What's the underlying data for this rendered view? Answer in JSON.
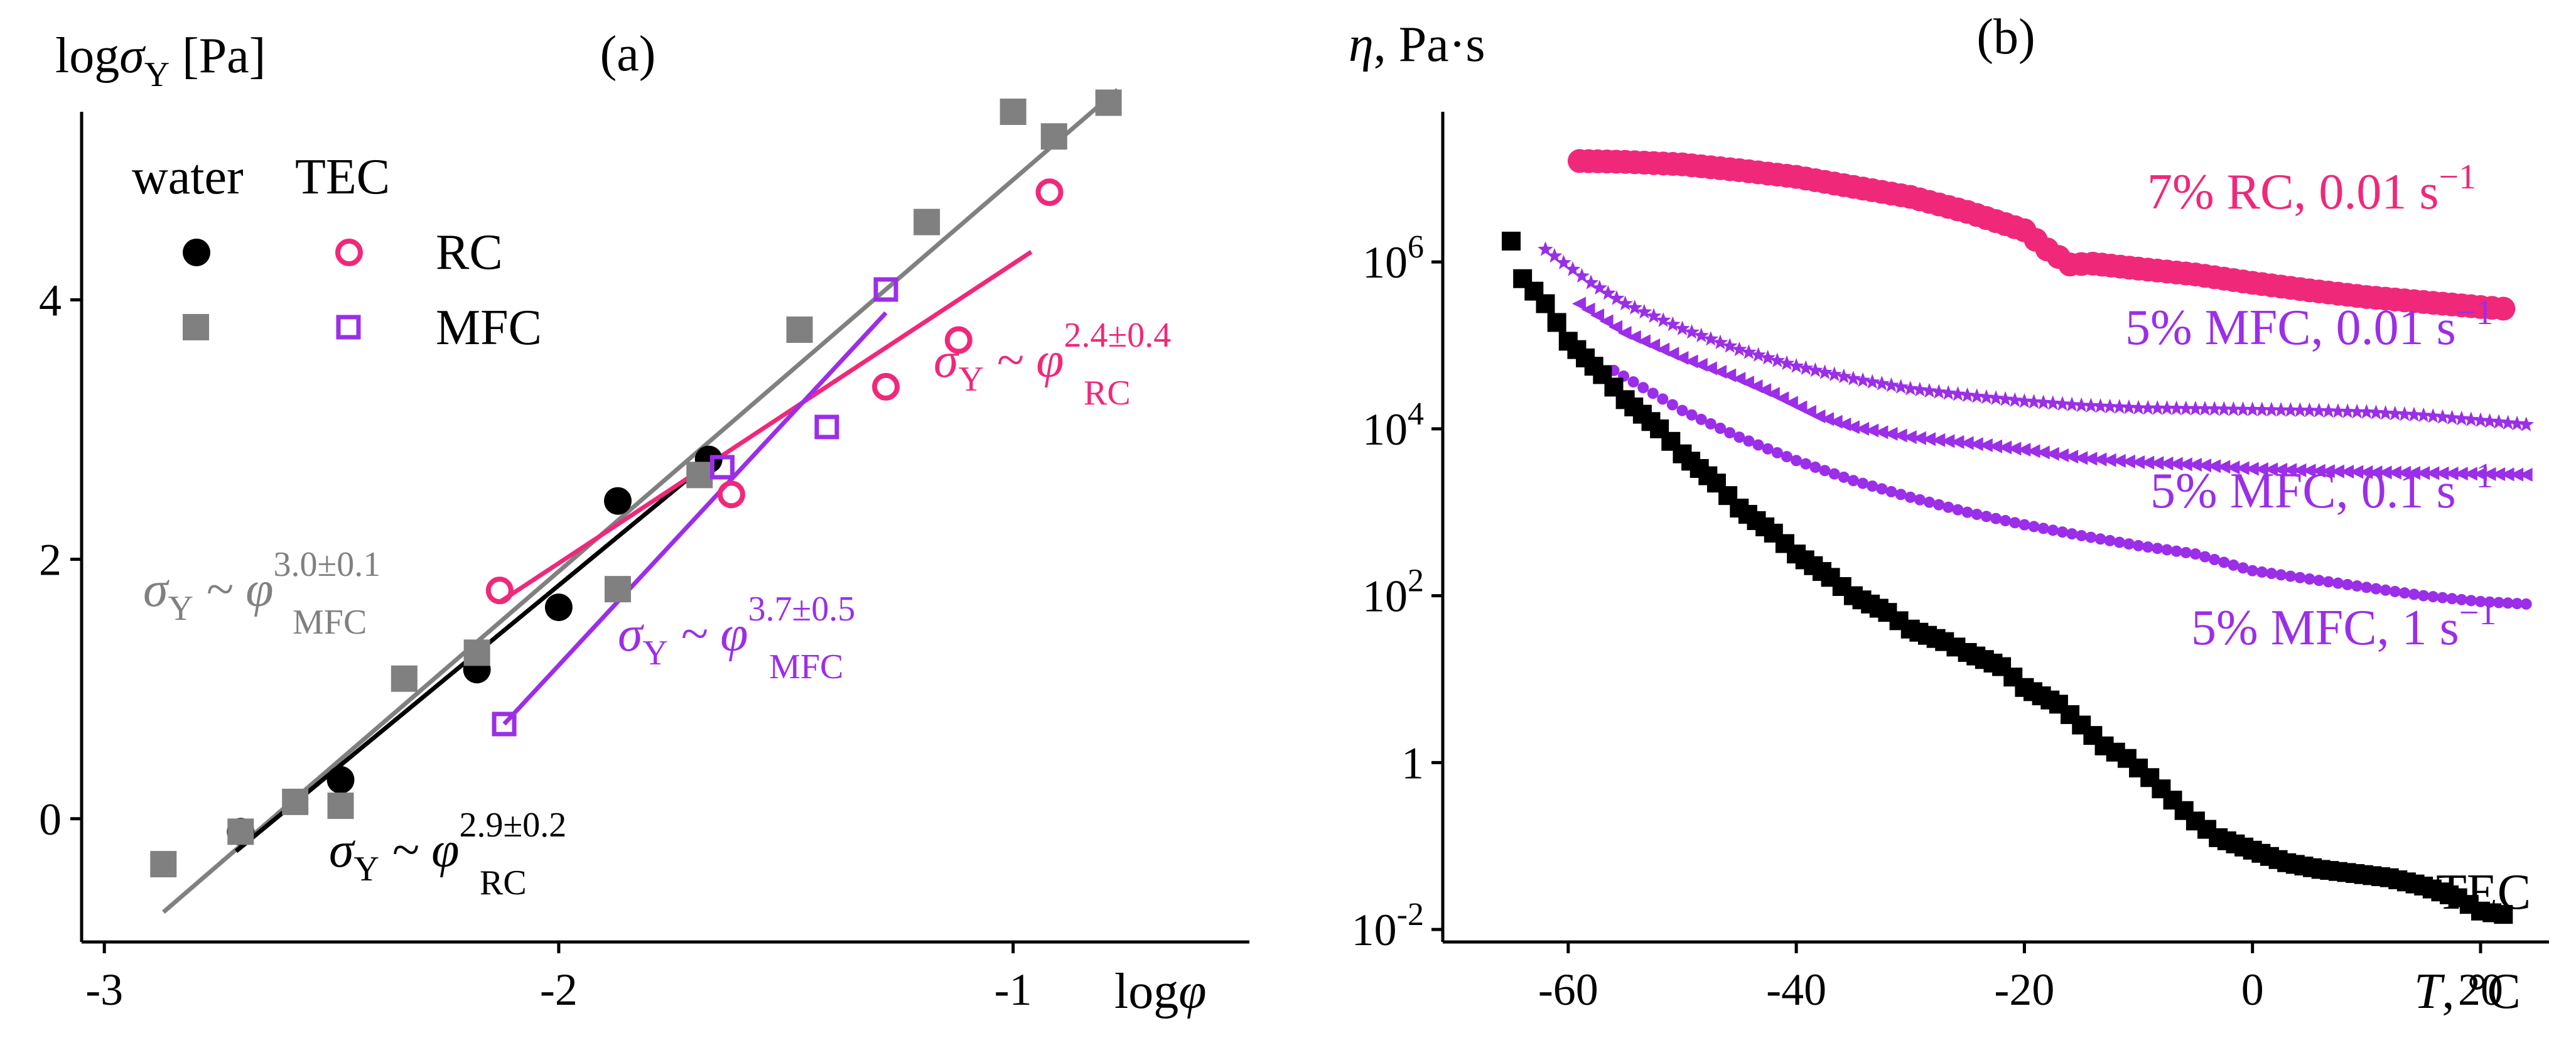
{
  "colors": {
    "black": "#000000",
    "gray": "#808080",
    "pink": "#f0287a",
    "purple": "#9b2ee8"
  },
  "chart_data": [
    {
      "id": "a",
      "type": "scatter",
      "panel_label": "(a)",
      "xlabel": "logφ",
      "ylabel": "logσY [Pa]",
      "xlim": [
        -3.05,
        -0.48
      ],
      "ylim": [
        -0.95,
        5.45
      ],
      "xticks": [
        -3,
        -2,
        -1
      ],
      "xtick_labels": [
        "-3",
        "-2",
        "-1"
      ],
      "yticks": [
        0,
        2,
        4
      ],
      "ytick_labels": [
        "0",
        "2",
        "4"
      ],
      "legend": {
        "header_water": "water",
        "header_tec": "TEC",
        "row_rc": "RC",
        "row_mfc": "MFC"
      },
      "series": [
        {
          "name": "RC in water",
          "marker": "circle-filled",
          "color": "black",
          "x": [
            -2.7,
            -2.48,
            -2.18,
            -2.0,
            -1.87,
            -1.67
          ],
          "y": [
            -0.1,
            0.3,
            1.15,
            1.63,
            2.45,
            2.77
          ]
        },
        {
          "name": "MFC in water",
          "marker": "square-filled",
          "color": "gray",
          "x": [
            -2.87,
            -2.7,
            -2.58,
            -2.48,
            -2.34,
            -2.18,
            -1.87,
            -1.69,
            -1.47,
            -1.19,
            -1.0,
            -0.91,
            -0.79
          ],
          "y": [
            -0.35,
            -0.1,
            0.13,
            0.1,
            1.08,
            1.28,
            1.77,
            2.65,
            3.77,
            4.6,
            5.45,
            5.26,
            5.52
          ]
        },
        {
          "name": "RC in TEC",
          "marker": "circle-open",
          "color": "pink",
          "x": [
            -2.13,
            -1.62,
            -1.28,
            -1.12,
            -0.92
          ],
          "y": [
            1.76,
            2.5,
            3.33,
            3.69,
            4.83
          ]
        },
        {
          "name": "MFC in TEC",
          "marker": "square-open",
          "color": "purple",
          "x": [
            -2.12,
            -1.64,
            -1.41,
            -1.28
          ],
          "y": [
            0.73,
            2.71,
            3.02,
            4.08
          ]
        }
      ],
      "fits": [
        {
          "color": "gray",
          "x": [
            -2.87,
            -0.77
          ],
          "y": [
            -0.72,
            5.62
          ]
        },
        {
          "color": "black",
          "x": [
            -2.71,
            -1.66
          ],
          "y": [
            -0.25,
            2.78
          ]
        },
        {
          "color": "pink",
          "x": [
            -2.13,
            -0.96
          ],
          "y": [
            1.67,
            4.37
          ]
        },
        {
          "color": "purple",
          "x": [
            -2.12,
            -1.28
          ],
          "y": [
            0.73,
            3.9
          ]
        }
      ],
      "annotations": [
        {
          "color": "gray",
          "prefix": "σ",
          "prefix_sub": "Y",
          "mid": " ~ φ",
          "sup": "3.0±0.1",
          "sub": "MFC"
        },
        {
          "color": "black",
          "prefix": "σ",
          "prefix_sub": "Y",
          "mid": " ~ φ",
          "sup": "2.9±0.2",
          "sub": "RC"
        },
        {
          "color": "purple",
          "prefix": "σ",
          "prefix_sub": "Y",
          "mid": " ~ φ",
          "sup": "3.7±0.5",
          "sub": "MFC"
        },
        {
          "color": "pink",
          "prefix": "σ",
          "prefix_sub": "Y",
          "mid": " ~ φ",
          "sup": "2.4±0.4",
          "sub": "RC"
        }
      ]
    },
    {
      "id": "b",
      "type": "scatter",
      "panel_label": "(b)",
      "xlabel": "T, °C",
      "ylabel": "η, Pa·s",
      "yscale": "log",
      "xlim": [
        -71,
        26
      ],
      "ylim_log10": [
        -2.15,
        7.8
      ],
      "xticks": [
        -60,
        -40,
        -20,
        0,
        20
      ],
      "xtick_labels": [
        "-60",
        "-40",
        "-20",
        "0",
        "20"
      ],
      "yticks_log10": [
        -2,
        0,
        2,
        4,
        6
      ],
      "ytick_labels": [
        {
          "base": "10",
          "exp": "-2"
        },
        {
          "base": "1",
          "exp": ""
        },
        {
          "base": "10",
          "exp": "2"
        },
        {
          "base": "10",
          "exp": "4"
        },
        {
          "base": "10",
          "exp": "6"
        }
      ],
      "series": [
        {
          "name": "7% RC, 0.01 s⁻¹",
          "label_main": "7% RC, 0.01 s",
          "label_sup": "−1",
          "color": "pink",
          "marker": "circle",
          "x": [
            -59,
            -55,
            -50,
            -45,
            -40,
            -35,
            -30,
            -25,
            -20,
            -18,
            -16,
            -14,
            -10,
            -5,
            0,
            5,
            10,
            15,
            20,
            22
          ],
          "log10_y": [
            7.21,
            7.2,
            7.17,
            7.1,
            7.02,
            6.9,
            6.78,
            6.6,
            6.38,
            6.15,
            5.97,
            5.98,
            5.92,
            5.85,
            5.75,
            5.66,
            5.58,
            5.52,
            5.46,
            5.44
          ]
        },
        {
          "name": "5% MFC, 0.01 s⁻¹",
          "label_main": "5% MFC, 0.01 s",
          "label_sup": "−1",
          "color": "purple",
          "marker": "star",
          "x": [
            -62,
            -58,
            -55,
            -50,
            -45,
            -40,
            -35,
            -30,
            -25,
            -20,
            -15,
            -10,
            -5,
            0,
            5,
            10,
            15,
            20,
            24
          ],
          "log10_y": [
            6.15,
            5.75,
            5.5,
            5.2,
            4.95,
            4.75,
            4.6,
            4.48,
            4.4,
            4.33,
            4.28,
            4.25,
            4.24,
            4.23,
            4.22,
            4.2,
            4.16,
            4.1,
            4.05
          ]
        },
        {
          "name": "5% MFC, 0.1 s⁻¹",
          "label_main": "5% MFC, 0.1 s",
          "label_sup": "−1",
          "color": "purple",
          "marker": "triangle-left",
          "x": [
            -59,
            -55,
            -50,
            -45,
            -42,
            -38,
            -35,
            -30,
            -25,
            -20,
            -15,
            -10,
            -5,
            0,
            5,
            10,
            15,
            20,
            24
          ],
          "log10_y": [
            5.5,
            5.15,
            4.85,
            4.6,
            4.42,
            4.15,
            4.02,
            3.9,
            3.83,
            3.75,
            3.65,
            3.6,
            3.57,
            3.52,
            3.5,
            3.48,
            3.47,
            3.46,
            3.45
          ]
        },
        {
          "name": "5% MFC, 1 s⁻¹",
          "label_main": "5% MFC, 1 s",
          "label_sup": "−1",
          "color": "purple",
          "marker": "circle-small",
          "x": [
            -56,
            -50,
            -45,
            -40,
            -35,
            -30,
            -25,
            -20,
            -15,
            -10,
            -5,
            0,
            5,
            10,
            15,
            20,
            24
          ],
          "log10_y": [
            4.7,
            4.22,
            3.9,
            3.62,
            3.38,
            3.18,
            3.0,
            2.85,
            2.72,
            2.6,
            2.5,
            2.3,
            2.2,
            2.1,
            2.0,
            1.93,
            1.9
          ]
        },
        {
          "name": "TEC",
          "label_main": "TEC",
          "label_sup": "",
          "color": "black",
          "marker": "square",
          "x": [
            -65,
            -64,
            -62,
            -60,
            -57,
            -55,
            -52,
            -50,
            -47,
            -45,
            -42,
            -40,
            -37,
            -35,
            -32,
            -30,
            -27,
            -25,
            -22,
            -20,
            -17,
            -15,
            -13,
            -11,
            -9,
            -7,
            -5,
            -3,
            0,
            3,
            6,
            9,
            12,
            15,
            18,
            20,
            22
          ],
          "log10_y": [
            6.25,
            5.8,
            5.5,
            5.05,
            4.65,
            4.35,
            4.0,
            3.7,
            3.35,
            3.05,
            2.75,
            2.5,
            2.22,
            2.0,
            1.8,
            1.6,
            1.45,
            1.32,
            1.15,
            0.9,
            0.7,
            0.45,
            0.2,
            0.05,
            -0.18,
            -0.45,
            -0.7,
            -0.9,
            -1.05,
            -1.2,
            -1.28,
            -1.33,
            -1.38,
            -1.48,
            -1.62,
            -1.78,
            -1.82
          ]
        }
      ]
    }
  ]
}
